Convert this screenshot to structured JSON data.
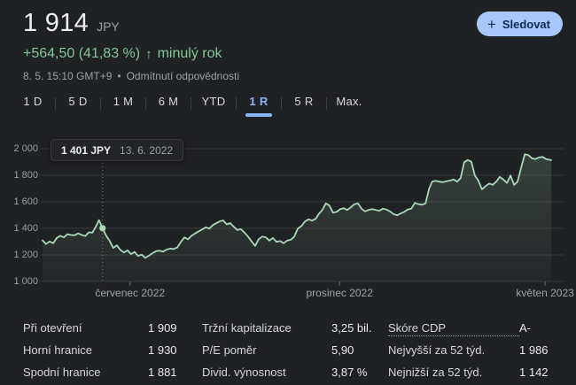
{
  "header": {
    "price": "1 914",
    "currency": "JPY",
    "change_text": "+564,50 (41,83 %)",
    "arrow_icon": "↑",
    "change_period": "minulý rok",
    "timestamp": "8. 5. 15:10 GMT+9",
    "separator": "•",
    "disclaimer": "Odmítnutí odpovědnosti",
    "follow_button": {
      "plus_icon": "+",
      "label": "Sledovat"
    }
  },
  "range_tabs": [
    {
      "label": "1 D",
      "active": false
    },
    {
      "label": "5 D",
      "active": false
    },
    {
      "label": "1 M",
      "active": false
    },
    {
      "label": "6 M",
      "active": false
    },
    {
      "label": "YTD",
      "active": false
    },
    {
      "label": "1 R",
      "active": true
    },
    {
      "label": "5 R",
      "active": false
    },
    {
      "label": "Max.",
      "active": false
    }
  ],
  "tooltip": {
    "price": "1 401 JPY",
    "date": "13. 6. 2022"
  },
  "chart_data": {
    "type": "line",
    "currency": "JPY",
    "period": "1 rok",
    "ylim": [
      1000,
      2000
    ],
    "yticks": [
      {
        "value": 2000,
        "label": "2 000"
      },
      {
        "value": 1800,
        "label": "1 800"
      },
      {
        "value": 1600,
        "label": "1 600"
      },
      {
        "value": 1400,
        "label": "1 400"
      },
      {
        "value": 1200,
        "label": "1 200"
      },
      {
        "value": 1000,
        "label": "1 000"
      }
    ],
    "xticks": [
      {
        "t": 0.172,
        "label": "červenec 2022"
      },
      {
        "t": 0.584,
        "label": "prosinec 2022"
      },
      {
        "t": 0.988,
        "label": "květen 2023"
      }
    ],
    "hover_point": {
      "t": 0.118,
      "value": 1401
    },
    "line_color": "#a8dab5",
    "grid_color": "#36383b",
    "points": [
      [
        0,
        1310
      ],
      [
        0.007,
        1282
      ],
      [
        0.014,
        1301
      ],
      [
        0.021,
        1288
      ],
      [
        0.028,
        1328
      ],
      [
        0.035,
        1344
      ],
      [
        0.042,
        1332
      ],
      [
        0.049,
        1356
      ],
      [
        0.056,
        1350
      ],
      [
        0.063,
        1348
      ],
      [
        0.07,
        1362
      ],
      [
        0.077,
        1350
      ],
      [
        0.084,
        1342
      ],
      [
        0.091,
        1370
      ],
      [
        0.098,
        1368
      ],
      [
        0.105,
        1415
      ],
      [
        0.111,
        1462
      ],
      [
        0.118,
        1401
      ],
      [
        0.125,
        1345
      ],
      [
        0.132,
        1305
      ],
      [
        0.139,
        1252
      ],
      [
        0.146,
        1272
      ],
      [
        0.153,
        1238
      ],
      [
        0.16,
        1218
      ],
      [
        0.167,
        1234
      ],
      [
        0.174,
        1206
      ],
      [
        0.181,
        1222
      ],
      [
        0.188,
        1192
      ],
      [
        0.195,
        1202
      ],
      [
        0.202,
        1178
      ],
      [
        0.209,
        1194
      ],
      [
        0.216,
        1213
      ],
      [
        0.223,
        1228
      ],
      [
        0.23,
        1232
      ],
      [
        0.237,
        1225
      ],
      [
        0.244,
        1240
      ],
      [
        0.251,
        1248
      ],
      [
        0.258,
        1245
      ],
      [
        0.265,
        1256
      ],
      [
        0.272,
        1298
      ],
      [
        0.279,
        1332
      ],
      [
        0.286,
        1318
      ],
      [
        0.293,
        1344
      ],
      [
        0.3,
        1362
      ],
      [
        0.307,
        1378
      ],
      [
        0.314,
        1392
      ],
      [
        0.321,
        1408
      ],
      [
        0.328,
        1398
      ],
      [
        0.334,
        1422
      ],
      [
        0.341,
        1438
      ],
      [
        0.348,
        1452
      ],
      [
        0.355,
        1460
      ],
      [
        0.362,
        1430
      ],
      [
        0.369,
        1440
      ],
      [
        0.376,
        1412
      ],
      [
        0.383,
        1388
      ],
      [
        0.39,
        1394
      ],
      [
        0.397,
        1368
      ],
      [
        0.404,
        1338
      ],
      [
        0.411,
        1302
      ],
      [
        0.418,
        1268
      ],
      [
        0.425,
        1318
      ],
      [
        0.432,
        1338
      ],
      [
        0.439,
        1332
      ],
      [
        0.446,
        1308
      ],
      [
        0.453,
        1328
      ],
      [
        0.46,
        1298
      ],
      [
        0.467,
        1304
      ],
      [
        0.474,
        1288
      ],
      [
        0.481,
        1308
      ],
      [
        0.488,
        1314
      ],
      [
        0.495,
        1338
      ],
      [
        0.502,
        1398
      ],
      [
        0.509,
        1418
      ],
      [
        0.516,
        1452
      ],
      [
        0.523,
        1468
      ],
      [
        0.53,
        1458
      ],
      [
        0.537,
        1472
      ],
      [
        0.543,
        1508
      ],
      [
        0.55,
        1538
      ],
      [
        0.557,
        1588
      ],
      [
        0.564,
        1572
      ],
      [
        0.571,
        1518
      ],
      [
        0.578,
        1524
      ],
      [
        0.585,
        1544
      ],
      [
        0.592,
        1552
      ],
      [
        0.599,
        1538
      ],
      [
        0.606,
        1558
      ],
      [
        0.613,
        1582
      ],
      [
        0.62,
        1588
      ],
      [
        0.627,
        1548
      ],
      [
        0.634,
        1528
      ],
      [
        0.641,
        1538
      ],
      [
        0.648,
        1545
      ],
      [
        0.655,
        1538
      ],
      [
        0.662,
        1532
      ],
      [
        0.669,
        1548
      ],
      [
        0.676,
        1542
      ],
      [
        0.683,
        1528
      ],
      [
        0.69,
        1508
      ],
      [
        0.697,
        1498
      ],
      [
        0.704,
        1512
      ],
      [
        0.711,
        1524
      ],
      [
        0.718,
        1542
      ],
      [
        0.725,
        1548
      ],
      [
        0.732,
        1592
      ],
      [
        0.739,
        1582
      ],
      [
        0.746,
        1578
      ],
      [
        0.753,
        1588
      ],
      [
        0.76,
        1698
      ],
      [
        0.766,
        1752
      ],
      [
        0.773,
        1758
      ],
      [
        0.78,
        1752
      ],
      [
        0.787,
        1748
      ],
      [
        0.794,
        1754
      ],
      [
        0.801,
        1760
      ],
      [
        0.808,
        1768
      ],
      [
        0.815,
        1752
      ],
      [
        0.822,
        1778
      ],
      [
        0.829,
        1898
      ],
      [
        0.836,
        1915
      ],
      [
        0.843,
        1902
      ],
      [
        0.85,
        1798
      ],
      [
        0.857,
        1758
      ],
      [
        0.864,
        1694
      ],
      [
        0.871,
        1718
      ],
      [
        0.878,
        1738
      ],
      [
        0.885,
        1728
      ],
      [
        0.892,
        1752
      ],
      [
        0.899,
        1788
      ],
      [
        0.906,
        1768
      ],
      [
        0.913,
        1742
      ],
      [
        0.92,
        1798
      ],
      [
        0.927,
        1728
      ],
      [
        0.934,
        1752
      ],
      [
        0.941,
        1858
      ],
      [
        0.948,
        1958
      ],
      [
        0.955,
        1952
      ],
      [
        0.962,
        1928
      ],
      [
        0.969,
        1922
      ],
      [
        0.976,
        1934
      ],
      [
        0.983,
        1938
      ],
      [
        0.99,
        1922
      ],
      [
        1,
        1914
      ]
    ]
  },
  "stats": {
    "columns": [
      {
        "rows": [
          {
            "label": "Při otevření",
            "value": "1 909",
            "linked": false
          },
          {
            "label": "Horní hranice",
            "value": "1 930",
            "linked": false
          },
          {
            "label": "Spodní hranice",
            "value": "1 881",
            "linked": false
          }
        ]
      },
      {
        "rows": [
          {
            "label": "Tržní kapitalizace",
            "value": "3,25 bil.",
            "linked": false
          },
          {
            "label": "P/E poměr",
            "value": "5,90",
            "linked": false
          },
          {
            "label": "Divid. výnosnost",
            "value": "3,87 %",
            "linked": false
          }
        ]
      },
      {
        "rows": [
          {
            "label": "Skóre CDP",
            "value": "A-",
            "linked": true
          },
          {
            "label": "Nejvyšší za 52 týd.",
            "value": "1 986",
            "linked": false
          },
          {
            "label": "Nejnižší za 52 týd.",
            "value": "1 142",
            "linked": false
          }
        ]
      }
    ]
  },
  "colors": {
    "background": "#202124",
    "positive_green": "#81c995",
    "accent_blue": "#8ab4f8",
    "button_bg": "#a8c7fa",
    "chart_line": "#a8dab5"
  }
}
